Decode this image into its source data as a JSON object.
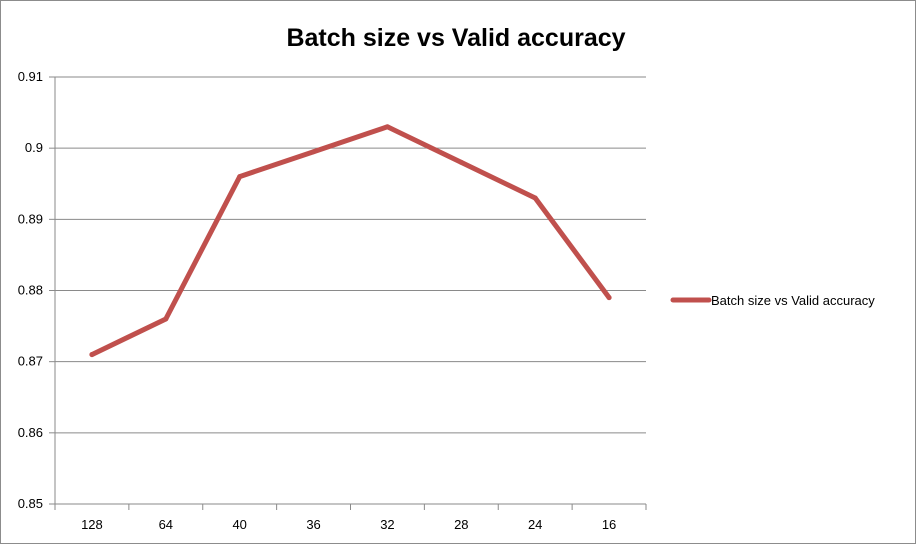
{
  "chart_data": {
    "type": "line",
    "title": "Batch size vs Valid accuracy",
    "xlabel": "",
    "ylabel": "",
    "categories": [
      "128",
      "64",
      "40",
      "36",
      "32",
      "28",
      "24",
      "16"
    ],
    "series": [
      {
        "name": "Batch size vs Valid accuracy",
        "color": "#c0504d",
        "values": [
          0.871,
          0.876,
          0.896,
          0.8995,
          0.903,
          0.898,
          0.893,
          0.879
        ]
      }
    ],
    "ylim": [
      0.85,
      0.91
    ],
    "yticks": [
      "0.85",
      "0.86",
      "0.87",
      "0.88",
      "0.89",
      "0.9",
      "0.91"
    ],
    "grid": "horizontal",
    "legend_position": "right"
  }
}
